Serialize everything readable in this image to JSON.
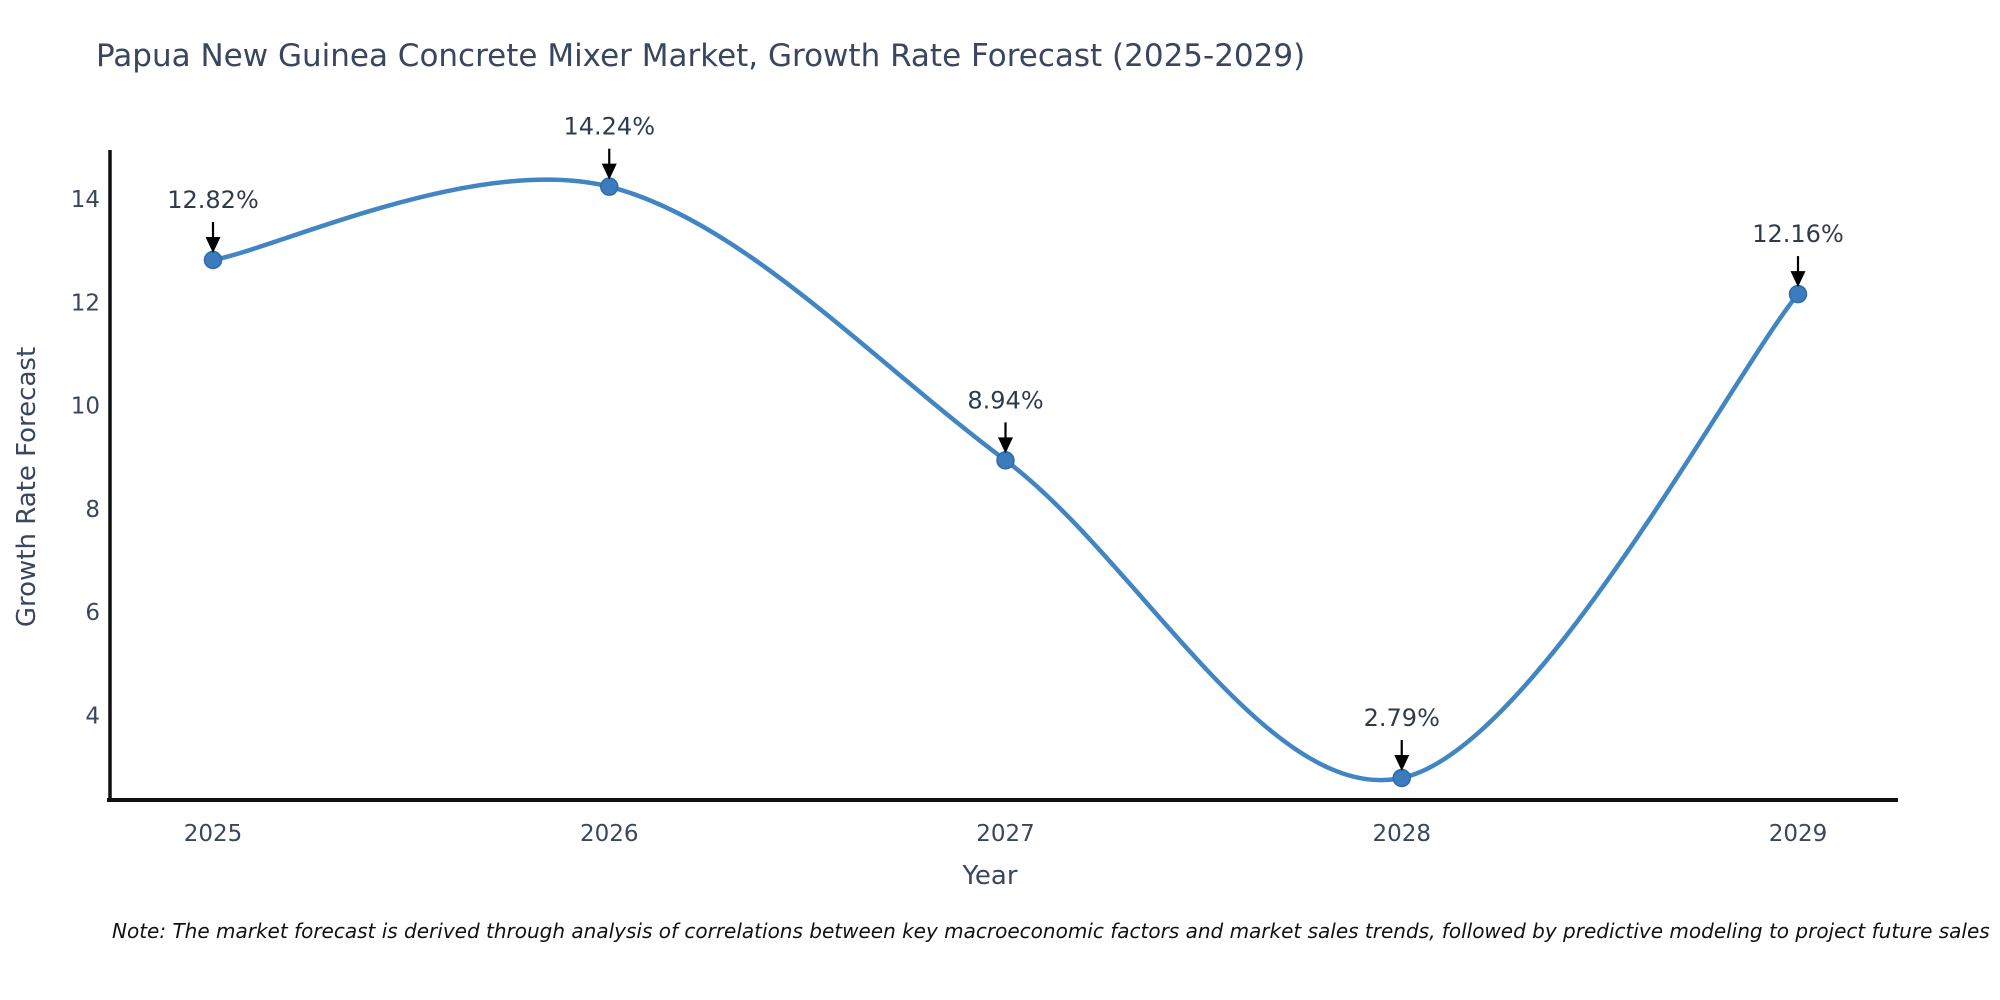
{
  "note": "Note: The market forecast is derived through analysis of correlations between key macroeconomic factors and market sales trends, followed by predictive modeling to project future sales",
  "chart_data": {
    "type": "line",
    "title": "Papua New Guinea Concrete Mixer Market, Growth Rate Forecast (2025-2029)",
    "xlabel": "Year",
    "ylabel": "Growth Rate Forecast",
    "categories": [
      "2025",
      "2026",
      "2027",
      "2028",
      "2029"
    ],
    "series": [
      {
        "name": "Growth Rate Forecast",
        "values": [
          12.82,
          14.24,
          8.94,
          2.79,
          12.16
        ],
        "point_labels": [
          "12.82%",
          "14.24%",
          "8.94%",
          "2.79%",
          "12.16%"
        ]
      }
    ],
    "yticks": [
      4,
      6,
      8,
      10,
      12,
      14
    ],
    "ylim": [
      2.36,
      14.95
    ],
    "line_shape": "spline",
    "markers": true,
    "grid": false,
    "legend": "none",
    "annotations": "value labels with down arrows above each point",
    "colors": {
      "line": "#4285c3",
      "marker": "#3a7cbe",
      "marker_edge": "#2f6ba8",
      "axis": "#111111",
      "tick_text": "#3a4560",
      "annotation_text": "#2f3b4d",
      "arrow": "#000000",
      "background": "#ffffff"
    }
  }
}
